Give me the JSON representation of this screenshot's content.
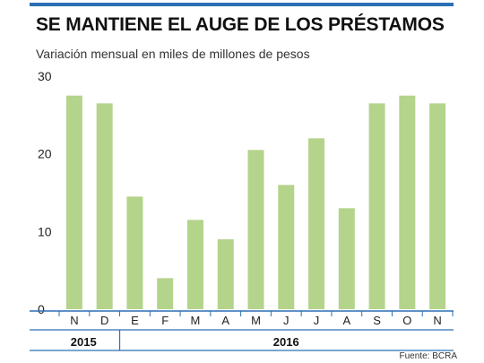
{
  "title": "SE MANTIENE EL AUGE DE LOS PRÉSTAMOS",
  "subtitle": "Variación mensual en miles de millones de pesos",
  "source": "Fuente: BCRA",
  "colors": {
    "bar": "#b3d48a",
    "accent_rule": "#2b6fb5",
    "axis_blue": "#2b6fb5",
    "text": "#222222"
  },
  "chart_data": {
    "type": "bar",
    "categories": [
      "N",
      "D",
      "E",
      "F",
      "M",
      "A",
      "M",
      "J",
      "J",
      "A",
      "S",
      "O",
      "N"
    ],
    "values": [
      27.5,
      26.5,
      14.5,
      4,
      11.5,
      9,
      20.5,
      16,
      22,
      13,
      26.5,
      27.5,
      26.5
    ],
    "year_groups": [
      {
        "label": "2015",
        "count": 2
      },
      {
        "label": "2016",
        "count": 11
      }
    ],
    "yticks": [
      "0",
      "10",
      "20",
      "30"
    ],
    "ytick_values": [
      0,
      10,
      20,
      30
    ],
    "ylim": [
      0,
      30
    ],
    "grid": false,
    "legend": "none"
  }
}
